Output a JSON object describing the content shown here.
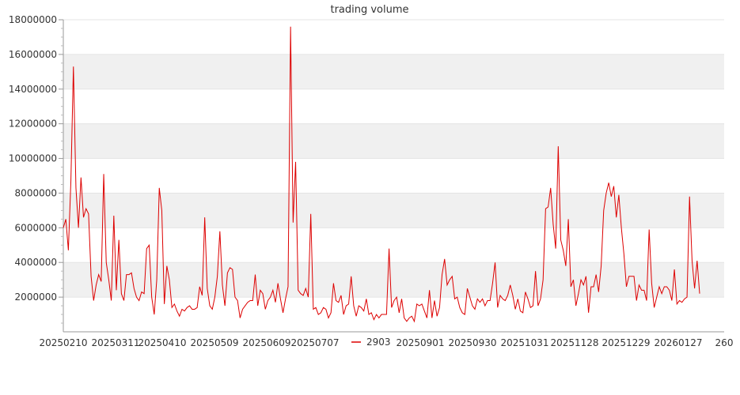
{
  "chart_data": {
    "type": "line",
    "title": "trading volume",
    "xlabel": "",
    "ylabel": "",
    "ylim": [
      0,
      18000000
    ],
    "yticks": [
      2000000,
      4000000,
      6000000,
      8000000,
      10000000,
      12000000,
      14000000,
      16000000,
      18000000
    ],
    "ytick_labels": [
      "2000000",
      "4000000",
      "6000000",
      "8000000",
      "10000000",
      "12000000",
      "14000000",
      "16000000",
      "18000000"
    ],
    "xtick_labels": [
      "20250210",
      "20250311",
      "20250410",
      "20250509",
      "20250609",
      "20250707",
      "20250901",
      "20250930",
      "20251031",
      "20251128",
      "20251229",
      "20260127",
      "260"
    ],
    "grid": "horizontal bands",
    "legend": "bottom",
    "colors": {
      "line": "#dd0000",
      "band": "#f0f0f0",
      "axis": "#999999"
    },
    "series": [
      {
        "name": "2903",
        "values": [
          6000000,
          6500000,
          4700000,
          8700000,
          15300000,
          8300000,
          6000000,
          8900000,
          6600000,
          7100000,
          6800000,
          3200000,
          1800000,
          2700000,
          3300000,
          2900000,
          9100000,
          4000000,
          3000000,
          1800000,
          6700000,
          2400000,
          5300000,
          2200000,
          1800000,
          3300000,
          3300000,
          3400000,
          2500000,
          2000000,
          1800000,
          2300000,
          2200000,
          4800000,
          5000000,
          2000000,
          1000000,
          3000000,
          8300000,
          7000000,
          1600000,
          3800000,
          3000000,
          1400000,
          1600000,
          1200000,
          900000,
          1300000,
          1200000,
          1400000,
          1500000,
          1300000,
          1300000,
          1400000,
          2600000,
          2100000,
          6600000,
          2500000,
          1500000,
          1300000,
          2000000,
          3200000,
          5800000,
          2700000,
          1500000,
          3400000,
          3700000,
          3600000,
          2000000,
          1800000,
          800000,
          1300000,
          1500000,
          1700000,
          1800000,
          1800000,
          3300000,
          1500000,
          2400000,
          2200000,
          1300000,
          1800000,
          2000000,
          2400000,
          1700000,
          2800000,
          1900000,
          1100000,
          1900000,
          2600000,
          17600000,
          6300000,
          9800000,
          2400000,
          2200000,
          2100000,
          2500000,
          2000000,
          6800000,
          1300000,
          1400000,
          1000000,
          1100000,
          1400000,
          1300000,
          800000,
          1100000,
          2800000,
          1800000,
          1700000,
          2100000,
          1000000,
          1500000,
          1600000,
          3200000,
          1500000,
          900000,
          1500000,
          1400000,
          1200000,
          1900000,
          1000000,
          1100000,
          700000,
          1000000,
          800000,
          1000000,
          1000000,
          1000000,
          4800000,
          1400000,
          1800000,
          2000000,
          1100000,
          1900000,
          800000,
          600000,
          800000,
          900000,
          600000,
          1600000,
          1500000,
          1600000,
          1200000,
          800000,
          2400000,
          800000,
          1800000,
          900000,
          1400000,
          3300000,
          4200000,
          2700000,
          3000000,
          3200000,
          1900000,
          2000000,
          1400000,
          1100000,
          1000000,
          2500000,
          2000000,
          1500000,
          1300000,
          1900000,
          1700000,
          1900000,
          1500000,
          1800000,
          1800000,
          2800000,
          4000000,
          1400000,
          2100000,
          1900000,
          1800000,
          2100000,
          2700000,
          2100000,
          1300000,
          1900000,
          1200000,
          1100000,
          2300000,
          1900000,
          1400000,
          1500000,
          3500000,
          1500000,
          1900000,
          3000000,
          7100000,
          7200000,
          8300000,
          6200000,
          4800000,
          10700000,
          5300000,
          4700000,
          3800000,
          6500000,
          2600000,
          3000000,
          1500000,
          2200000,
          3000000,
          2700000,
          3200000,
          1100000,
          2600000,
          2600000,
          3300000,
          2300000,
          3800000,
          7000000,
          8000000,
          8600000,
          7800000,
          8400000,
          6600000,
          7900000,
          6000000,
          4500000,
          2600000,
          3200000,
          3200000,
          3200000,
          1800000,
          2700000,
          2400000,
          2400000,
          1800000,
          5900000,
          2800000,
          1400000,
          2000000,
          2600000,
          2200000,
          2600000,
          2600000,
          2400000,
          1800000,
          3600000,
          1600000,
          1800000,
          1700000,
          1900000,
          2000000,
          7800000,
          4100000,
          2500000,
          4100000,
          2200000
        ]
      }
    ]
  }
}
